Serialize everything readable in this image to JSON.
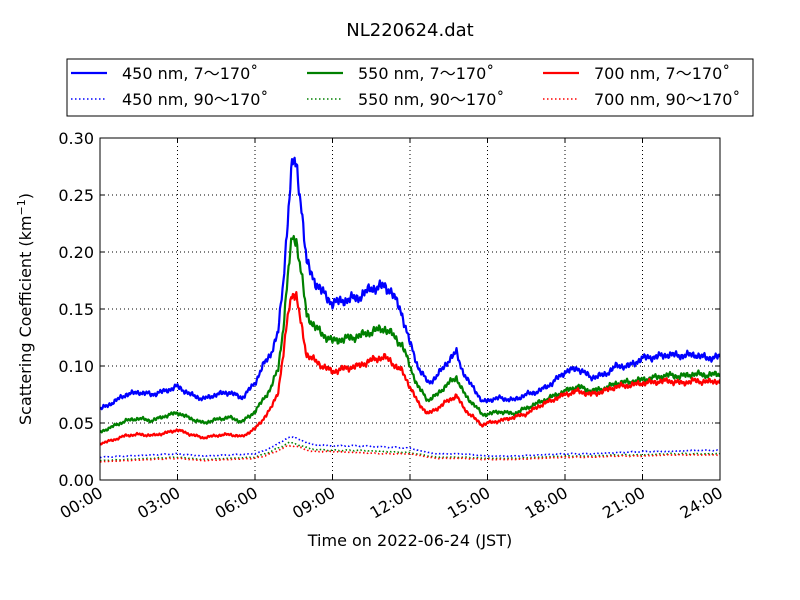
{
  "chart_data": {
    "type": "line",
    "title": "NL220624.dat",
    "xlabel": "Time on 2022-06-24 (JST)",
    "ylabel": "Scattering Coefficient (km",
    "ylabel_sup": "−1",
    "ylabel_end": ")",
    "xlim": [
      0,
      24
    ],
    "ylim": [
      0,
      0.3
    ],
    "x_unit": "hours (JST)",
    "grid": true,
    "legend_position": "top",
    "x_ticks": [
      0,
      3,
      6,
      9,
      12,
      15,
      18,
      21,
      24
    ],
    "x_tick_labels": [
      "00:00",
      "03:00",
      "06:00",
      "09:00",
      "12:00",
      "15:00",
      "18:00",
      "21:00",
      "24:00"
    ],
    "y_ticks": [
      0,
      0.05,
      0.1,
      0.15,
      0.2,
      0.25,
      0.3
    ],
    "y_tick_labels": [
      "0.00",
      "0.05",
      "0.10",
      "0.15",
      "0.20",
      "0.25",
      "0.30"
    ],
    "series": [
      {
        "name": "450 nm, 7～170˚",
        "color": "#0000ff",
        "style": "solid",
        "x": [
          0,
          0.5,
          1,
          1.5,
          2,
          2.5,
          3,
          3.5,
          4,
          4.5,
          5,
          5.5,
          6,
          6.3,
          6.6,
          6.9,
          7.1,
          7.3,
          7.45,
          7.6,
          7.8,
          8.0,
          8.3,
          8.6,
          9,
          9.5,
          10,
          10.5,
          11,
          11.3,
          11.7,
          12,
          12.3,
          12.7,
          13,
          13.5,
          13.8,
          14,
          14.2,
          14.5,
          14.8,
          15,
          15.5,
          16,
          16.5,
          17,
          17.5,
          18,
          18.5,
          19,
          19.5,
          20,
          20.5,
          21,
          21.5,
          22,
          22.5,
          23,
          23.5,
          24
        ],
        "y": [
          0.062,
          0.068,
          0.075,
          0.077,
          0.075,
          0.078,
          0.082,
          0.075,
          0.071,
          0.075,
          0.077,
          0.072,
          0.085,
          0.1,
          0.11,
          0.13,
          0.175,
          0.24,
          0.28,
          0.275,
          0.24,
          0.19,
          0.175,
          0.165,
          0.155,
          0.158,
          0.16,
          0.168,
          0.17,
          0.165,
          0.145,
          0.12,
          0.1,
          0.085,
          0.09,
          0.105,
          0.112,
          0.098,
          0.088,
          0.08,
          0.068,
          0.07,
          0.072,
          0.07,
          0.075,
          0.078,
          0.085,
          0.095,
          0.098,
          0.09,
          0.092,
          0.1,
          0.1,
          0.107,
          0.108,
          0.11,
          0.109,
          0.11,
          0.107,
          0.108
        ]
      },
      {
        "name": "550 nm, 7～170˚",
        "color": "#008000",
        "style": "solid",
        "x": [
          0,
          0.5,
          1,
          1.5,
          2,
          2.5,
          3,
          3.5,
          4,
          4.5,
          5,
          5.5,
          6,
          6.3,
          6.6,
          6.9,
          7.1,
          7.3,
          7.45,
          7.6,
          7.8,
          8.0,
          8.3,
          8.6,
          9,
          9.5,
          10,
          10.5,
          11,
          11.3,
          11.7,
          12,
          12.3,
          12.7,
          13,
          13.5,
          13.8,
          14,
          14.2,
          14.5,
          14.8,
          15,
          15.5,
          16,
          16.5,
          17,
          17.5,
          18,
          18.5,
          19,
          19.5,
          20,
          20.5,
          21,
          21.5,
          22,
          22.5,
          23,
          23.5,
          24
        ],
        "y": [
          0.042,
          0.047,
          0.052,
          0.054,
          0.052,
          0.056,
          0.059,
          0.054,
          0.05,
          0.053,
          0.055,
          0.051,
          0.06,
          0.07,
          0.08,
          0.098,
          0.135,
          0.185,
          0.215,
          0.21,
          0.18,
          0.145,
          0.135,
          0.128,
          0.122,
          0.124,
          0.126,
          0.13,
          0.133,
          0.128,
          0.118,
          0.1,
          0.082,
          0.07,
          0.074,
          0.085,
          0.09,
          0.08,
          0.072,
          0.066,
          0.057,
          0.058,
          0.06,
          0.058,
          0.063,
          0.068,
          0.073,
          0.078,
          0.082,
          0.078,
          0.08,
          0.085,
          0.086,
          0.088,
          0.09,
          0.092,
          0.091,
          0.093,
          0.092,
          0.093
        ]
      },
      {
        "name": "700 nm, 7～170˚",
        "color": "#ff0000",
        "style": "solid",
        "x": [
          0,
          0.5,
          1,
          1.5,
          2,
          2.5,
          3,
          3.5,
          4,
          4.5,
          5,
          5.5,
          6,
          6.3,
          6.6,
          6.9,
          7.1,
          7.3,
          7.45,
          7.6,
          7.8,
          8.0,
          8.3,
          8.6,
          9,
          9.5,
          10,
          10.5,
          11,
          11.3,
          11.7,
          12,
          12.3,
          12.7,
          13,
          13.5,
          13.8,
          14,
          14.2,
          14.5,
          14.8,
          15,
          15.5,
          16,
          16.5,
          17,
          17.5,
          18,
          18.5,
          19,
          19.5,
          20,
          20.5,
          21,
          21.5,
          22,
          22.5,
          23,
          23.5,
          24
        ],
        "y": [
          0.032,
          0.035,
          0.039,
          0.04,
          0.039,
          0.041,
          0.044,
          0.04,
          0.037,
          0.039,
          0.04,
          0.038,
          0.045,
          0.053,
          0.062,
          0.078,
          0.11,
          0.15,
          0.165,
          0.16,
          0.135,
          0.11,
          0.105,
          0.1,
          0.095,
          0.098,
          0.1,
          0.105,
          0.108,
          0.103,
          0.095,
          0.082,
          0.068,
          0.058,
          0.062,
          0.07,
          0.074,
          0.066,
          0.06,
          0.054,
          0.048,
          0.05,
          0.052,
          0.055,
          0.058,
          0.065,
          0.07,
          0.075,
          0.078,
          0.075,
          0.078,
          0.082,
          0.083,
          0.085,
          0.086,
          0.087,
          0.085,
          0.087,
          0.086,
          0.087
        ]
      },
      {
        "name": "450 nm, 90～170˚",
        "color": "#0000ff",
        "style": "dotted",
        "x": [
          0,
          1,
          2,
          3,
          4,
          5,
          6,
          6.5,
          7,
          7.3,
          7.5,
          7.8,
          8.2,
          9,
          10,
          11,
          12,
          12.5,
          13,
          14,
          15,
          16,
          17,
          18,
          19,
          20,
          21,
          22,
          23,
          24
        ],
        "y": [
          0.02,
          0.021,
          0.022,
          0.023,
          0.021,
          0.022,
          0.023,
          0.027,
          0.033,
          0.038,
          0.037,
          0.035,
          0.031,
          0.03,
          0.03,
          0.029,
          0.028,
          0.025,
          0.023,
          0.023,
          0.021,
          0.021,
          0.022,
          0.023,
          0.023,
          0.024,
          0.025,
          0.025,
          0.026,
          0.026
        ]
      },
      {
        "name": "550 nm, 90～170˚",
        "color": "#008000",
        "style": "dotted",
        "x": [
          0,
          1,
          2,
          3,
          4,
          5,
          6,
          6.5,
          7,
          7.3,
          7.5,
          7.8,
          8.2,
          9,
          10,
          11,
          12,
          12.5,
          13,
          14,
          15,
          16,
          17,
          18,
          19,
          20,
          21,
          22,
          23,
          24
        ],
        "y": [
          0.017,
          0.018,
          0.019,
          0.02,
          0.018,
          0.019,
          0.02,
          0.024,
          0.029,
          0.033,
          0.032,
          0.03,
          0.027,
          0.026,
          0.026,
          0.025,
          0.024,
          0.022,
          0.02,
          0.02,
          0.019,
          0.019,
          0.02,
          0.021,
          0.021,
          0.022,
          0.022,
          0.023,
          0.023,
          0.023
        ]
      },
      {
        "name": "700 nm, 90～170˚",
        "color": "#ff0000",
        "style": "dotted",
        "x": [
          0,
          1,
          2,
          3,
          4,
          5,
          6,
          6.5,
          7,
          7.3,
          7.5,
          7.8,
          8.2,
          9,
          10,
          11,
          12,
          12.5,
          13,
          14,
          15,
          16,
          17,
          18,
          19,
          20,
          21,
          22,
          23,
          24
        ],
        "y": [
          0.016,
          0.017,
          0.018,
          0.019,
          0.017,
          0.018,
          0.019,
          0.022,
          0.027,
          0.03,
          0.03,
          0.028,
          0.025,
          0.025,
          0.024,
          0.023,
          0.023,
          0.021,
          0.019,
          0.019,
          0.018,
          0.018,
          0.019,
          0.02,
          0.02,
          0.021,
          0.021,
          0.022,
          0.022,
          0.022
        ]
      }
    ]
  }
}
